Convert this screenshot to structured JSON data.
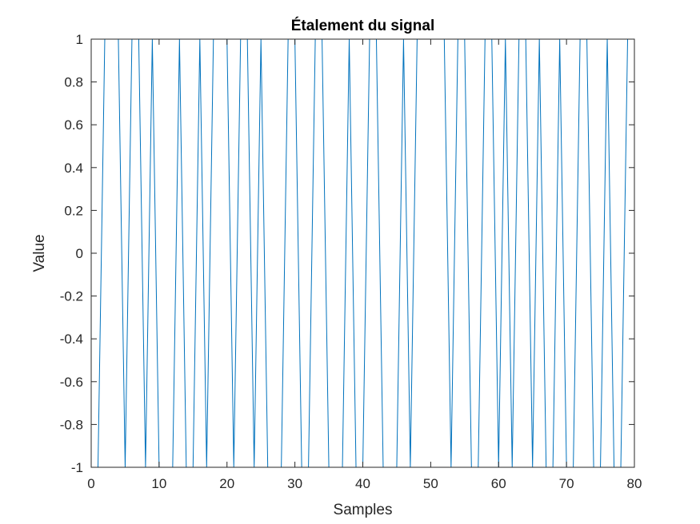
{
  "chart_data": {
    "type": "line",
    "title": "Étalement du signal",
    "xlabel": "Samples",
    "ylabel": "Value",
    "xlim": [
      0,
      80
    ],
    "ylim": [
      -1,
      1
    ],
    "xticks": [
      0,
      10,
      20,
      30,
      40,
      50,
      60,
      70,
      80
    ],
    "xtick_labels": [
      "0",
      "10",
      "20",
      "30",
      "40",
      "50",
      "60",
      "70",
      "80"
    ],
    "yticks": [
      -1,
      -0.8,
      -0.6,
      -0.4,
      -0.2,
      0,
      0.2,
      0.4,
      0.6,
      0.8,
      1
    ],
    "ytick_labels": [
      "-1",
      "-0.8",
      "-0.6",
      "-0.4",
      "-0.2",
      "0",
      "0.2",
      "0.4",
      "0.6",
      "0.8",
      "1"
    ],
    "grid": false,
    "box": true,
    "series": [
      {
        "color": "#0072BD",
        "x": [
          0,
          1,
          2,
          3,
          4,
          5,
          6,
          7,
          8,
          9,
          10,
          11,
          12,
          13,
          14,
          15,
          16,
          17,
          18,
          19,
          20,
          21,
          22,
          23,
          24,
          25,
          26,
          27,
          28,
          29,
          30,
          31,
          32,
          33,
          34,
          35,
          36,
          37,
          38,
          39,
          40,
          41,
          42,
          43,
          44,
          45,
          46,
          47,
          48,
          49,
          50,
          51,
          52,
          53,
          54,
          55,
          56,
          57,
          58,
          59,
          60,
          61,
          62,
          63,
          64,
          65,
          66,
          67,
          68,
          69,
          70,
          71,
          72,
          73,
          74,
          75,
          76,
          77,
          78,
          79,
          80
        ],
        "values": [
          -1,
          -1,
          1,
          1,
          1,
          -1,
          1,
          1,
          -1,
          1,
          -1,
          -1,
          -1,
          1,
          -1,
          -1,
          1,
          -1,
          1,
          1,
          1,
          -1,
          1,
          1,
          -1,
          1,
          -1,
          -1,
          -1,
          1,
          1,
          -1,
          -1,
          1,
          1,
          -1,
          -1,
          -1,
          1,
          -1,
          -1,
          1,
          1,
          -1,
          -1,
          -1,
          1,
          -1,
          1,
          1,
          1,
          1,
          1,
          -1,
          1,
          1,
          -1,
          -1,
          1,
          1,
          -1,
          1,
          -1,
          1,
          1,
          -1,
          1,
          -1,
          -1,
          1,
          -1,
          -1,
          1,
          1,
          -1,
          -1,
          1,
          -1,
          -1,
          1,
          1
        ]
      }
    ]
  }
}
